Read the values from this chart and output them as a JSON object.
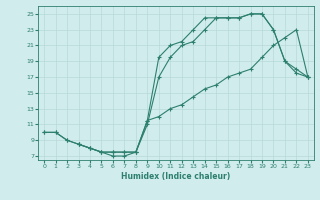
{
  "background_color": "#d0ecec",
  "line_color": "#2d7f6e",
  "xlabel": "Humidex (Indice chaleur)",
  "xlim": [
    -0.5,
    23.5
  ],
  "ylim": [
    6.5,
    26
  ],
  "yticks": [
    7,
    9,
    11,
    13,
    15,
    17,
    19,
    21,
    23,
    25
  ],
  "xticks": [
    0,
    1,
    2,
    3,
    4,
    5,
    6,
    7,
    8,
    9,
    10,
    11,
    12,
    13,
    14,
    15,
    16,
    17,
    18,
    19,
    20,
    21,
    22,
    23
  ],
  "line1_x": [
    0,
    1,
    2,
    3,
    4,
    5,
    6,
    7,
    8,
    9,
    10,
    11,
    12,
    13,
    14,
    15,
    16,
    17,
    18,
    19,
    20,
    21,
    22,
    23
  ],
  "line1_y": [
    10,
    10,
    9,
    8.5,
    8,
    7.5,
    7.5,
    7.5,
    7.5,
    11.5,
    12,
    13,
    13.5,
    14.5,
    15.5,
    16,
    17,
    17.5,
    18,
    19.5,
    21,
    22,
    23,
    17
  ],
  "line2_x": [
    0,
    1,
    2,
    3,
    4,
    5,
    6,
    7,
    8,
    9,
    10,
    11,
    12,
    13,
    14,
    15,
    16,
    17,
    18,
    19,
    20,
    21,
    22,
    23
  ],
  "line2_y": [
    10,
    10,
    9,
    8.5,
    8,
    7.5,
    7.5,
    7.5,
    7.5,
    11.5,
    19.5,
    21,
    21.5,
    23,
    24.5,
    24.5,
    24.5,
    24.5,
    25,
    25,
    23,
    19,
    17.5,
    17
  ],
  "line3_x": [
    3,
    4,
    5,
    6,
    7,
    8,
    9,
    10,
    11,
    12,
    13,
    14,
    15,
    16,
    17,
    18,
    19,
    20,
    21,
    22,
    23
  ],
  "line3_y": [
    8.5,
    8,
    7.5,
    7,
    7,
    7.5,
    11,
    17,
    19.5,
    21,
    21.5,
    23,
    24.5,
    24.5,
    24.5,
    25,
    25,
    23,
    19,
    18,
    17
  ]
}
